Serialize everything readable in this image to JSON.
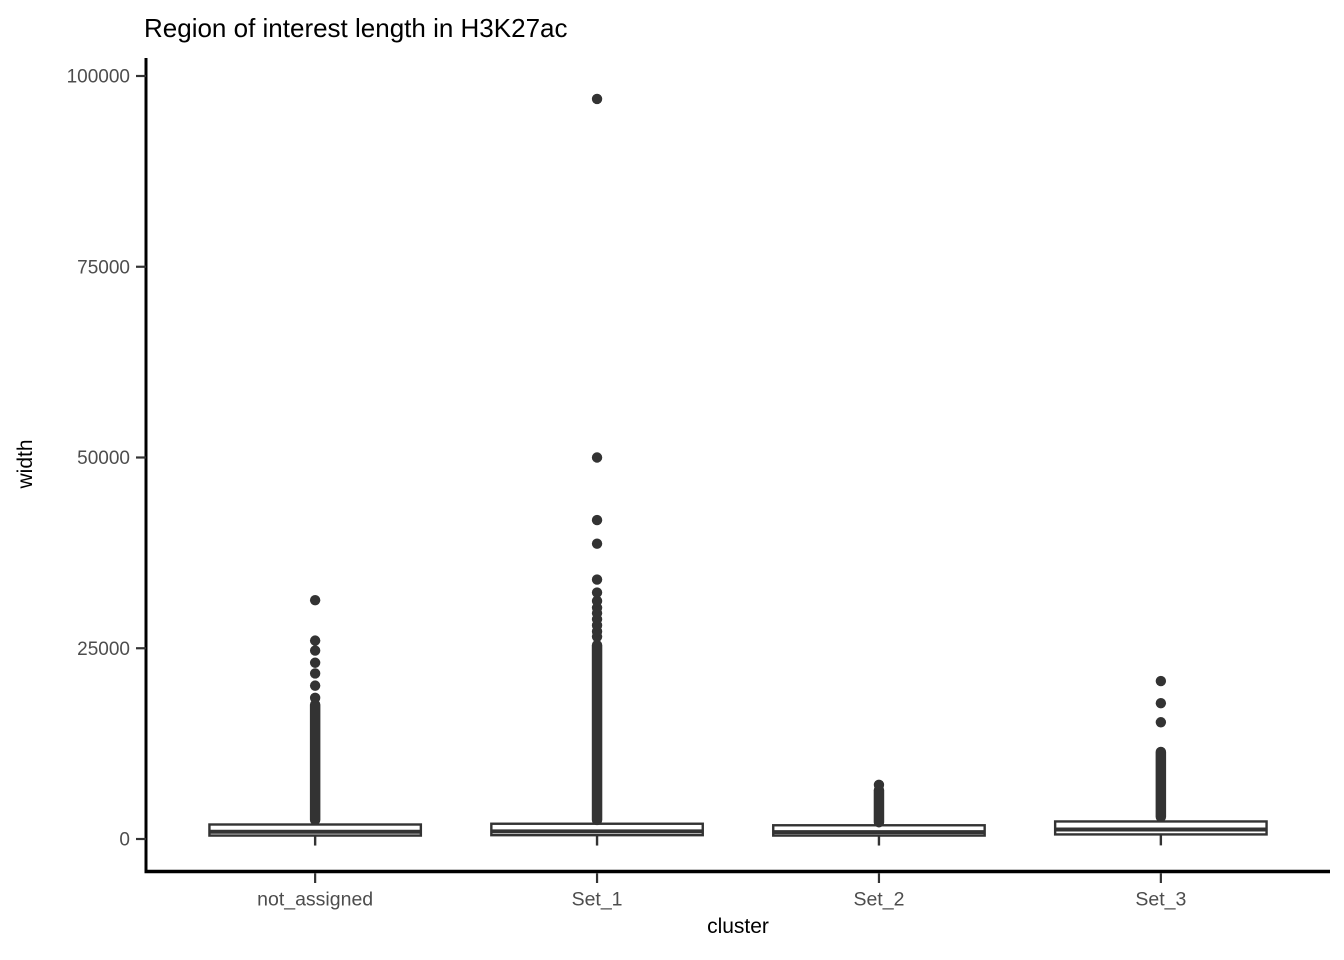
{
  "chart_data": {
    "type": "boxplot",
    "title": "Region of interest length in H3K27ac",
    "xlabel": "cluster",
    "ylabel": "width",
    "ylim": [
      0,
      100000
    ],
    "yticks": [
      0,
      25000,
      50000,
      75000,
      100000
    ],
    "ytick_labels": [
      "0",
      "25000",
      "50000",
      "75000",
      "100000"
    ],
    "categories": [
      "not_assigned",
      "Set_1",
      "Set_2",
      "Set_3"
    ],
    "grid": false,
    "legend": null,
    "series": [
      {
        "category": "not_assigned",
        "whisker_low": 60,
        "q1": 450,
        "median": 950,
        "q3": 1900,
        "whisker_high": 2500,
        "outlier_dense_range": [
          2500,
          17600
        ],
        "outliers": [
          18500,
          20100,
          21700,
          23100,
          24700,
          26000,
          31300
        ]
      },
      {
        "category": "Set_1",
        "whisker_low": 60,
        "q1": 500,
        "median": 1000,
        "q3": 2000,
        "whisker_high": 2600,
        "outlier_dense_range": [
          2500,
          25400
        ],
        "outliers": [
          26500,
          27200,
          28000,
          28800,
          29600,
          30300,
          31200,
          32300,
          34000,
          38700,
          41800,
          50000,
          97000
        ]
      },
      {
        "category": "Set_2",
        "whisker_low": 60,
        "q1": 450,
        "median": 900,
        "q3": 1800,
        "whisker_high": 2300,
        "outlier_dense_range": [
          2200,
          6400
        ],
        "outliers": [
          7100
        ]
      },
      {
        "category": "Set_3",
        "whisker_low": 80,
        "q1": 600,
        "median": 1250,
        "q3": 2300,
        "whisker_high": 3000,
        "outlier_dense_range": [
          2900,
          11400
        ],
        "outliers": [
          15300,
          17800,
          20700
        ]
      }
    ]
  },
  "colors": {
    "background": "#ffffff",
    "axis_line": "#000000",
    "tick_mark": "#333333",
    "tick_label": "#4d4d4d",
    "title": "#000000",
    "axis_title": "#000000",
    "box_stroke": "#333333",
    "box_fill": "#ffffff",
    "point": "#333333"
  }
}
